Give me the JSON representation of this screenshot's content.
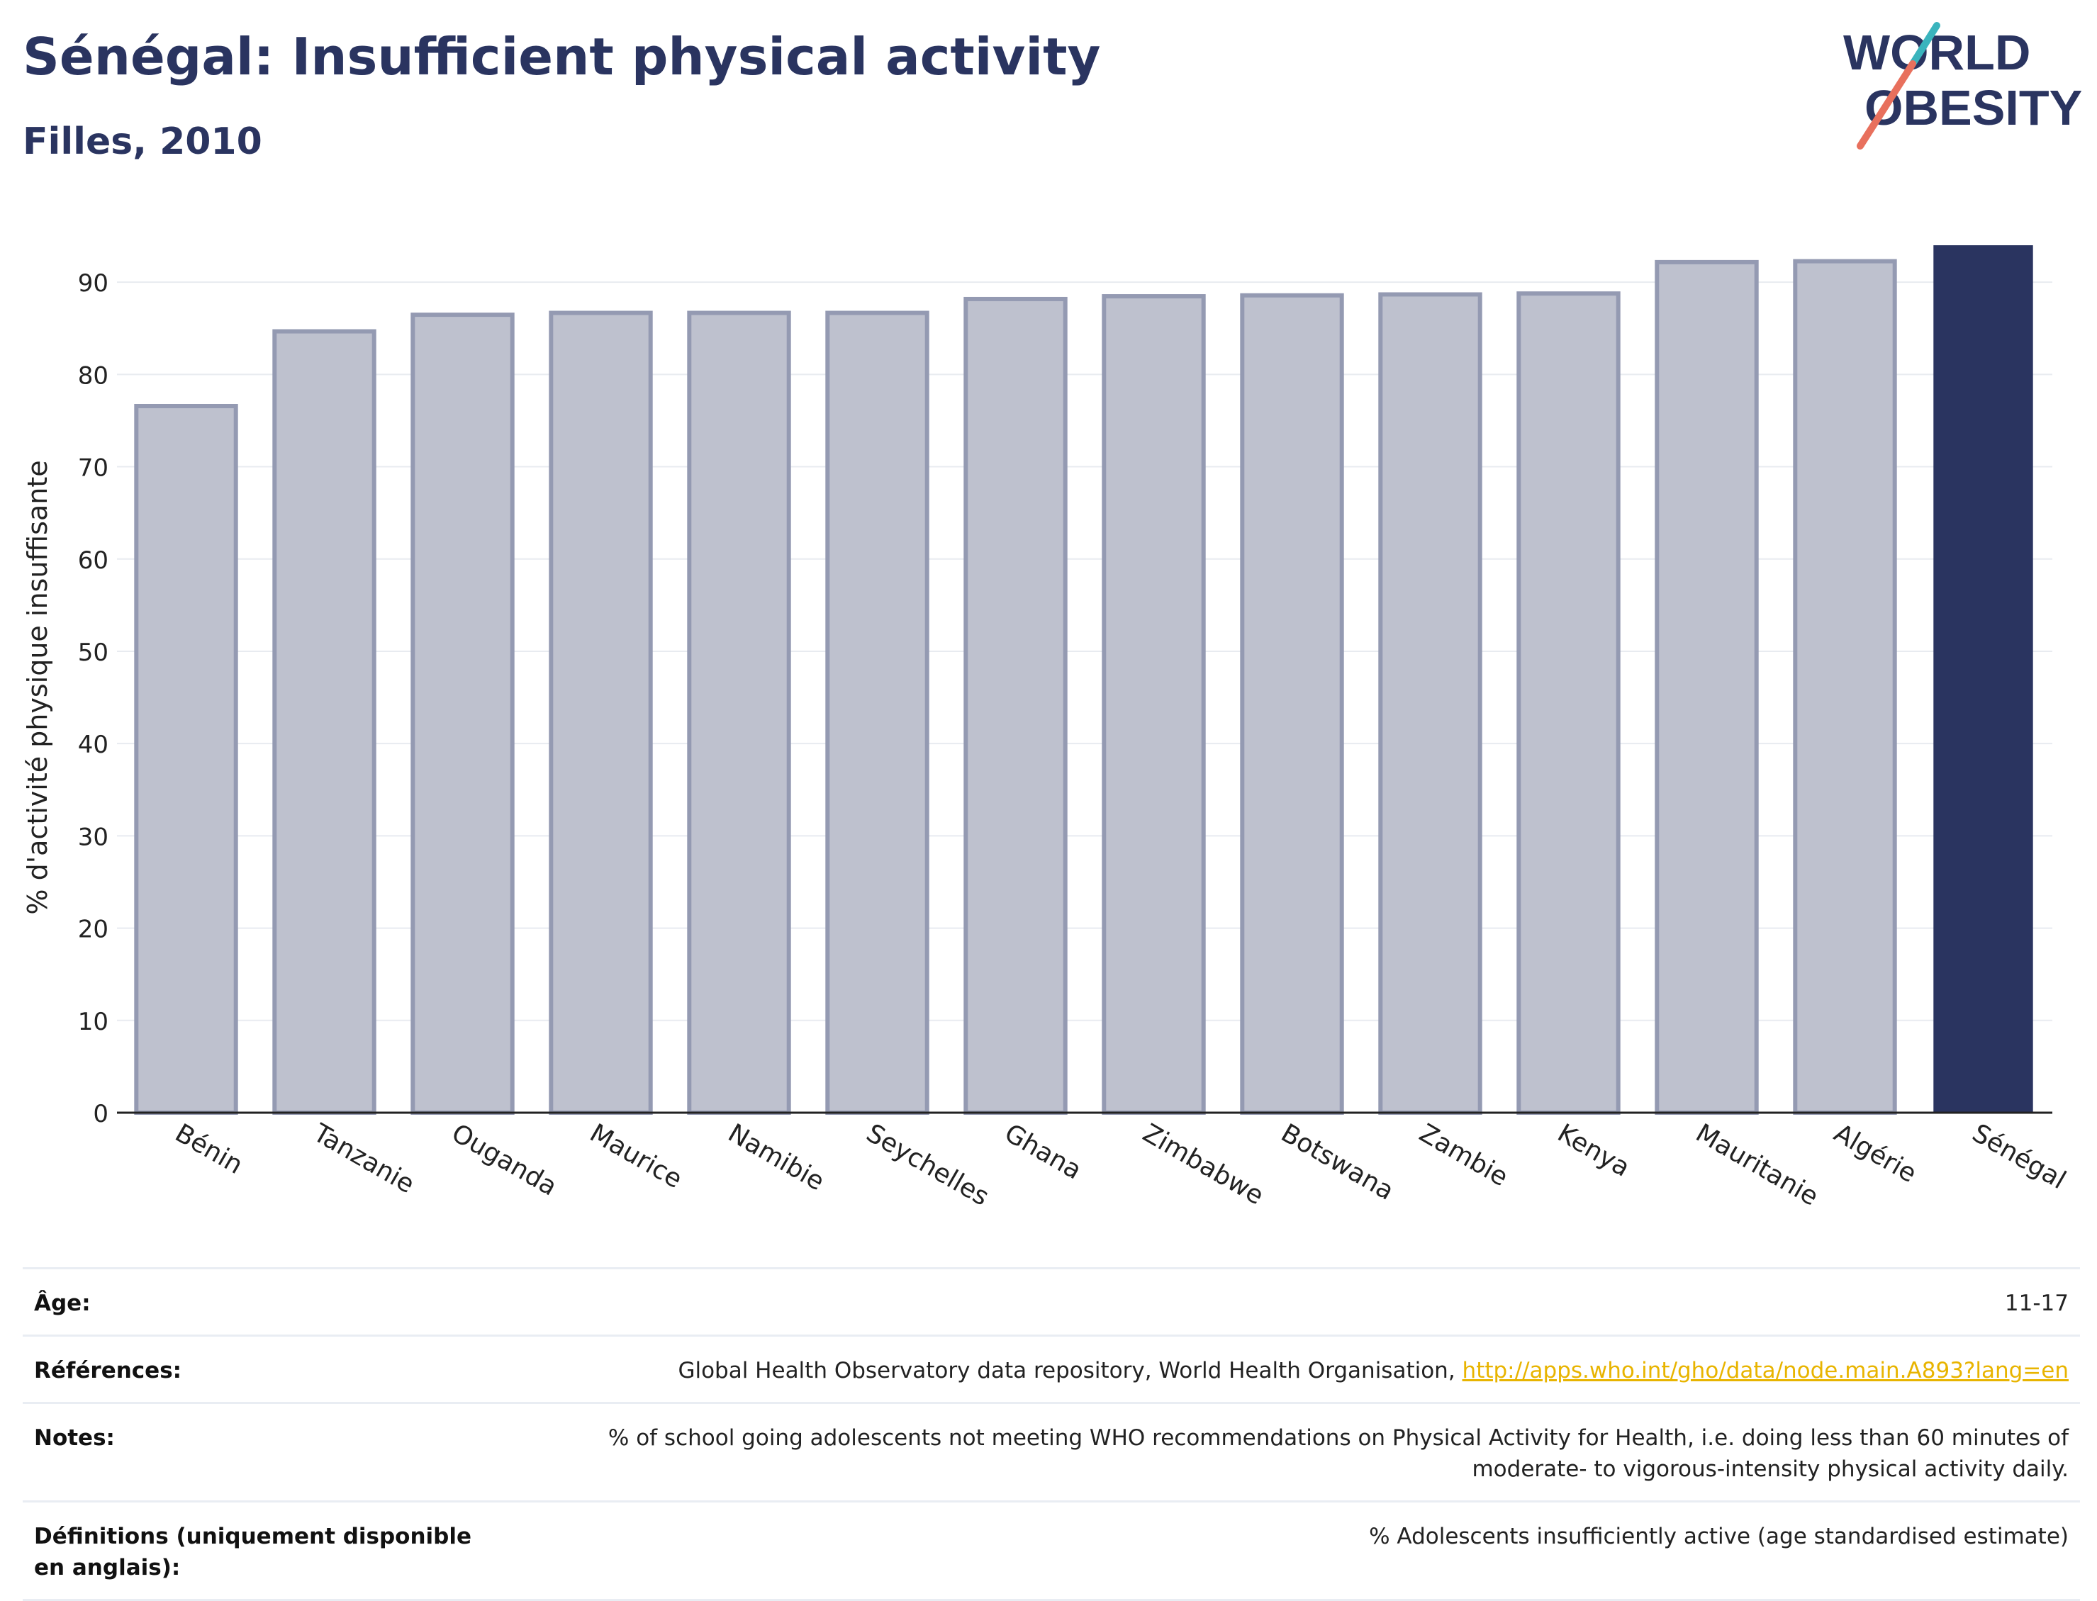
{
  "header": {
    "title": "Sénégal: Insufficient physical activity",
    "subtitle": "Filles, 2010"
  },
  "logo": {
    "line1": "WORLD",
    "line2": "OBESITY"
  },
  "colors": {
    "highlight_bar": "#2a3460",
    "other_bar_fill": "#bec1ce",
    "other_bar_stroke": "#949ab2",
    "text_dark": "#2a3460",
    "link": "#e8b400",
    "logo_teal": "#3ab4bd",
    "logo_coral": "#e8705d"
  },
  "chart_data": {
    "type": "bar",
    "categories": [
      "Bénin",
      "Tanzanie",
      "Ouganda",
      "Maurice",
      "Namibie",
      "Seychelles",
      "Ghana",
      "Zimbabwe",
      "Botswana",
      "Zambie",
      "Kenya",
      "Mauritanie",
      "Algérie",
      "Sénégal"
    ],
    "values": [
      76.8,
      84.9,
      86.7,
      86.9,
      86.9,
      86.9,
      88.4,
      88.7,
      88.8,
      88.9,
      89.0,
      92.4,
      92.5,
      94.0
    ],
    "highlight": "Sénégal",
    "ylabel": "% d'activité physique insuffisante",
    "xlabel": "",
    "ylim": [
      0,
      96
    ],
    "yticks": [
      0,
      10,
      20,
      30,
      40,
      50,
      60,
      70,
      80,
      90
    ],
    "grid": true,
    "legend": "none"
  },
  "info": {
    "age": {
      "label": "Âge:",
      "value": "11-17"
    },
    "references": {
      "label": "Références:",
      "value": "Global Health Observatory data repository, World Health Organisation, ",
      "link": "http://apps.who.int/gho/data/node.main.A893?lang=en"
    },
    "notes": {
      "label": "Notes:",
      "value": "% of school going adolescents not meeting WHO recommendations on Physical Activity for Health, i.e. doing less than 60 minutes of moderate- to vigorous-intensity physical activity daily."
    },
    "definitions": {
      "label": "Définitions (uniquement disponible en anglais):",
      "value": "% Adolescents insufficiently active (age standardised estimate)"
    }
  }
}
